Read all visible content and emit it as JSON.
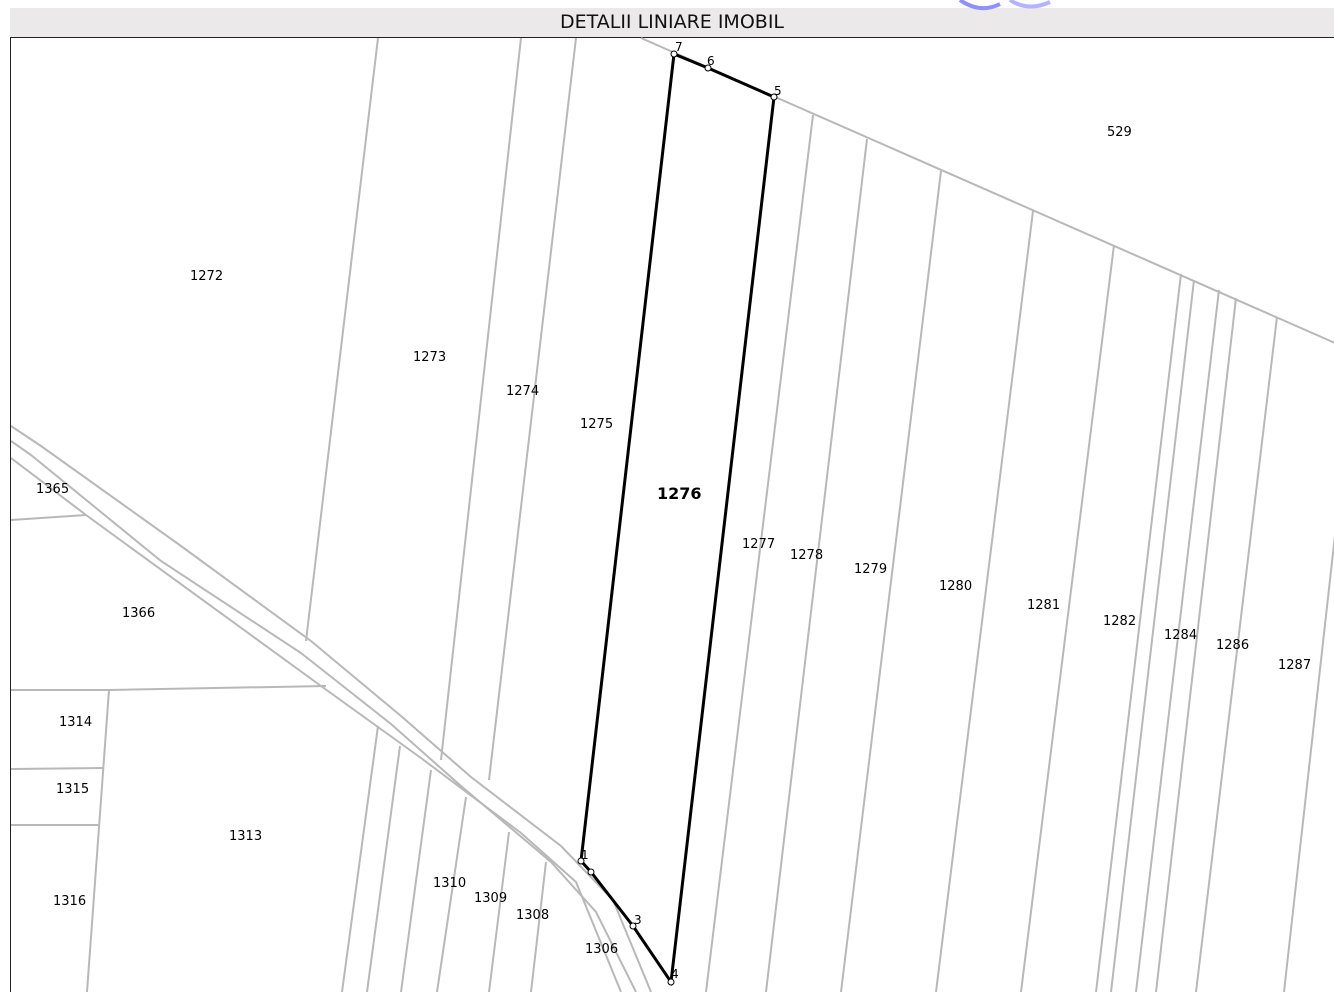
{
  "header": {
    "title": "DETALII LINIARE IMOBIL"
  },
  "map": {
    "highlight_parcel": "1276",
    "parcels": [
      "529",
      "1272",
      "1273",
      "1274",
      "1275",
      "1277",
      "1278",
      "1279",
      "1280",
      "1281",
      "1282",
      "1284",
      "1286",
      "1287",
      "1306",
      "1308",
      "1309",
      "1310",
      "1313",
      "1314",
      "1315",
      "1316",
      "1365",
      "1366"
    ],
    "vertices": [
      "1",
      "3",
      "4",
      "5",
      "6",
      "7"
    ],
    "colors": {
      "boundary": "#b8b8b8",
      "highlight": "#000000",
      "background": "#ffffff"
    }
  }
}
